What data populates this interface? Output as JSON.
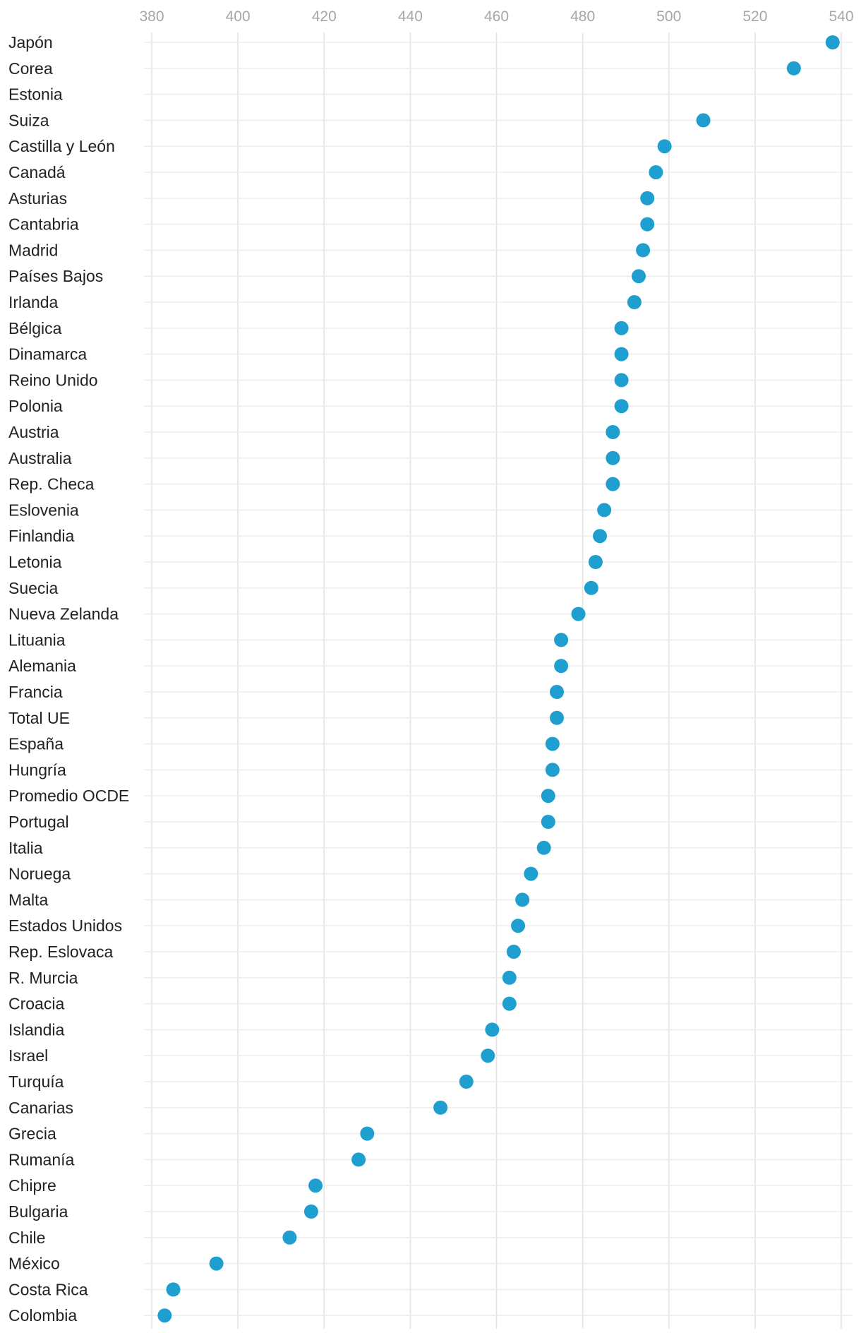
{
  "chart_data": {
    "type": "scatter",
    "title": "",
    "xlabel": "",
    "ylabel": "",
    "xlim": [
      380,
      540
    ],
    "x_ticks": [
      380,
      400,
      420,
      440,
      460,
      480,
      500,
      520,
      540
    ],
    "grid": true,
    "legend": "none",
    "point_color": "#1f9fd0",
    "categories": [
      "Japón",
      "Corea",
      "Estonia",
      "Suiza",
      "Castilla y León",
      "Canadá",
      "Asturias",
      "Cantabria",
      "Madrid",
      "Países Bajos",
      "Irlanda",
      "Bélgica",
      "Dinamarca",
      "Reino Unido",
      "Polonia",
      "Austria",
      "Australia",
      "Rep. Checa",
      "Eslovenia",
      "Finlandia",
      "Letonia",
      "Suecia",
      "Nueva Zelanda",
      "Lituania",
      "Alemania",
      "Francia",
      "Total UE",
      "España",
      "Hungría",
      "Promedio OCDE",
      "Portugal",
      "Italia",
      "Noruega",
      "Malta",
      "Estados Unidos",
      "Rep. Eslovaca",
      "R. Murcia",
      "Croacia",
      "Islandia",
      "Israel",
      "Turquía",
      "Canarias",
      "Grecia",
      "Rumanía",
      "Chipre",
      "Bulgaria",
      "Chile",
      "México",
      "Costa Rica",
      "Colombia"
    ],
    "values": [
      538,
      529,
      null,
      508,
      499,
      497,
      495,
      495,
      494,
      493,
      492,
      489,
      489,
      489,
      489,
      487,
      487,
      487,
      485,
      484,
      483,
      482,
      479,
      475,
      475,
      474,
      474,
      473,
      473,
      472,
      472,
      471,
      468,
      466,
      465,
      464,
      463,
      463,
      459,
      458,
      453,
      447,
      430,
      428,
      418,
      417,
      412,
      395,
      385,
      383
    ]
  }
}
